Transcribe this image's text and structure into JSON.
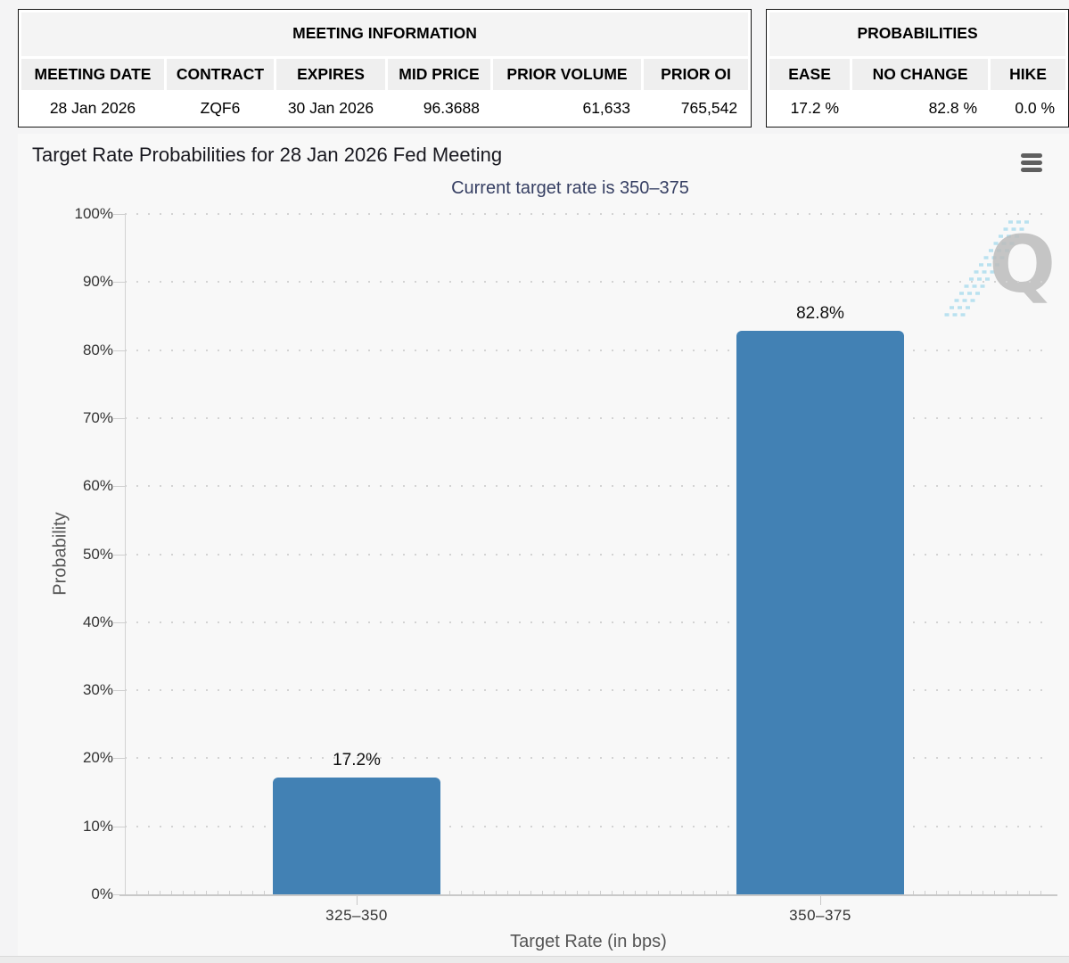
{
  "meeting_information": {
    "title": "MEETING INFORMATION",
    "columns": [
      "MEETING DATE",
      "CONTRACT",
      "EXPIRES",
      "MID PRICE",
      "PRIOR VOLUME",
      "PRIOR OI"
    ],
    "row": [
      "28 Jan 2026",
      "ZQF6",
      "30 Jan 2026",
      "96.3688",
      "61,633",
      "765,542"
    ]
  },
  "probabilities": {
    "title": "PROBABILITIES",
    "columns": [
      "EASE",
      "NO CHANGE",
      "HIKE"
    ],
    "row": [
      "17.2 %",
      "82.8 %",
      "0.0 %"
    ]
  },
  "chart_data": {
    "type": "bar",
    "title": "Target Rate Probabilities for 28 Jan 2026 Fed Meeting",
    "subtitle": "Current target rate is 350–375",
    "categories": [
      "325–350",
      "350–375"
    ],
    "values": [
      17.2,
      82.8
    ],
    "value_labels": [
      "17.2%",
      "82.8%"
    ],
    "xlabel": "Target Rate (in bps)",
    "ylabel": "Probability",
    "ylim": [
      0,
      100
    ],
    "ytick_step": 10,
    "ytick_labels": [
      "0%",
      "10%",
      "20%",
      "30%",
      "40%",
      "50%",
      "60%",
      "70%",
      "80%",
      "90%",
      "100%"
    ],
    "grid": "dotted-horizontal",
    "legend": "none",
    "bar_color": "#4281B4",
    "watermark_letter": "Q",
    "watermark_color": "#bdbdbd",
    "watermark_stripe_color": "#aadcee"
  }
}
